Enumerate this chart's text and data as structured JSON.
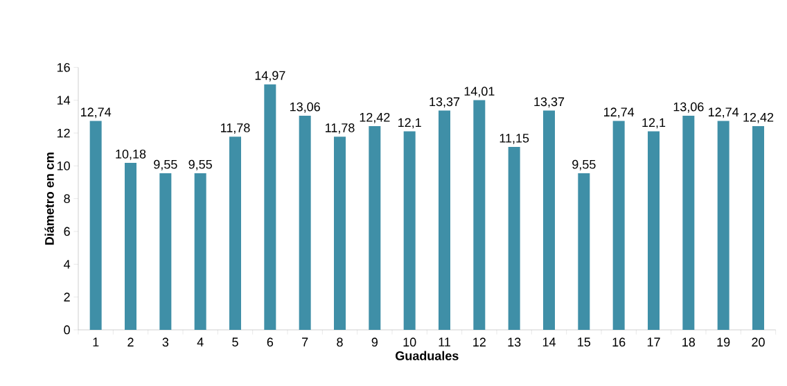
{
  "chart_data": {
    "type": "bar",
    "xlabel": "Guaduales",
    "ylabel": "Diámetro en cm",
    "categories": [
      "1",
      "2",
      "3",
      "4",
      "5",
      "6",
      "7",
      "8",
      "9",
      "10",
      "11",
      "12",
      "13",
      "14",
      "15",
      "16",
      "17",
      "18",
      "19",
      "20"
    ],
    "values": [
      12.74,
      10.18,
      9.55,
      9.55,
      11.78,
      14.97,
      13.06,
      11.78,
      12.42,
      12.1,
      13.37,
      14.01,
      11.15,
      13.37,
      9.55,
      12.74,
      12.1,
      13.06,
      12.74,
      12.42
    ],
    "value_labels": [
      "12,74",
      "10,18",
      "9,55",
      "9,55",
      "11,78",
      "14,97",
      "13,06",
      "11,78",
      "12,42",
      "12,1",
      "13,37",
      "14,01",
      "11,15",
      "13,37",
      "9,55",
      "12,74",
      "12,1",
      "13,06",
      "12,74",
      "12,42"
    ],
    "color": "#3f8fa7",
    "ylim": [
      0,
      16
    ],
    "yticks": [
      0,
      2,
      4,
      6,
      8,
      10,
      12,
      14,
      16
    ]
  }
}
